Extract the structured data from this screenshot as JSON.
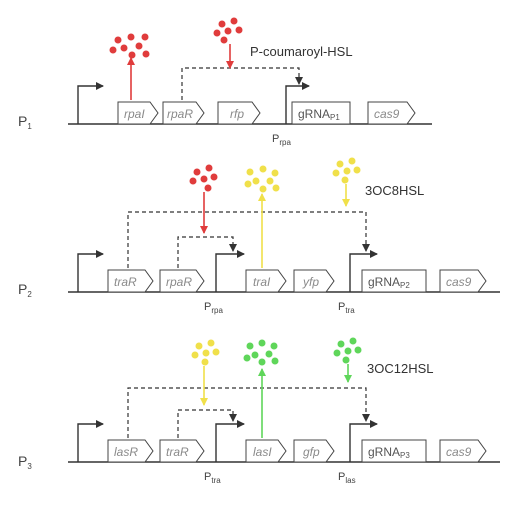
{
  "colors": {
    "red": "#e03c3c",
    "yellow": "#f0e04a",
    "green": "#5fd65a",
    "line": "#333333",
    "box_stroke": "#444444",
    "gene_text": "#8a8a8a"
  },
  "rows": [
    {
      "label": "P",
      "label_sub": "1",
      "genes": [
        {
          "name": "rpaI",
          "italic": true
        },
        {
          "name": "rpaR",
          "italic": true
        },
        {
          "name": "rfp",
          "italic": true
        },
        {
          "name": "gRNA",
          "sub": "P1",
          "italic": false
        },
        {
          "name": "cas9",
          "italic": true
        }
      ],
      "promoters": [
        {
          "name": "P",
          "sub": "rpa"
        }
      ],
      "molecule": {
        "name": "P-coumaroyl-HSL",
        "color": "red"
      }
    },
    {
      "label": "P",
      "label_sub": "2",
      "genes": [
        {
          "name": "traR",
          "italic": true
        },
        {
          "name": "rpaR",
          "italic": true
        },
        {
          "name": "traI",
          "italic": true
        },
        {
          "name": "yfp",
          "italic": true
        },
        {
          "name": "gRNA",
          "sub": "P2",
          "italic": false
        },
        {
          "name": "cas9",
          "italic": true
        }
      ],
      "promoters": [
        {
          "name": "P",
          "sub": "rpa"
        },
        {
          "name": "P",
          "sub": "tra"
        }
      ],
      "molecule": {
        "name": "3OC8HSL",
        "color": "yellow"
      }
    },
    {
      "label": "P",
      "label_sub": "3",
      "genes": [
        {
          "name": "lasR",
          "italic": true
        },
        {
          "name": "traR",
          "italic": true
        },
        {
          "name": "lasI",
          "italic": true
        },
        {
          "name": "gfp",
          "italic": true
        },
        {
          "name": "gRNA",
          "sub": "P3",
          "italic": false
        },
        {
          "name": "cas9",
          "italic": true
        }
      ],
      "promoters": [
        {
          "name": "P",
          "sub": "tra"
        },
        {
          "name": "P",
          "sub": "las"
        }
      ],
      "molecule": {
        "name": "3OC12HSL",
        "color": "green"
      }
    }
  ]
}
